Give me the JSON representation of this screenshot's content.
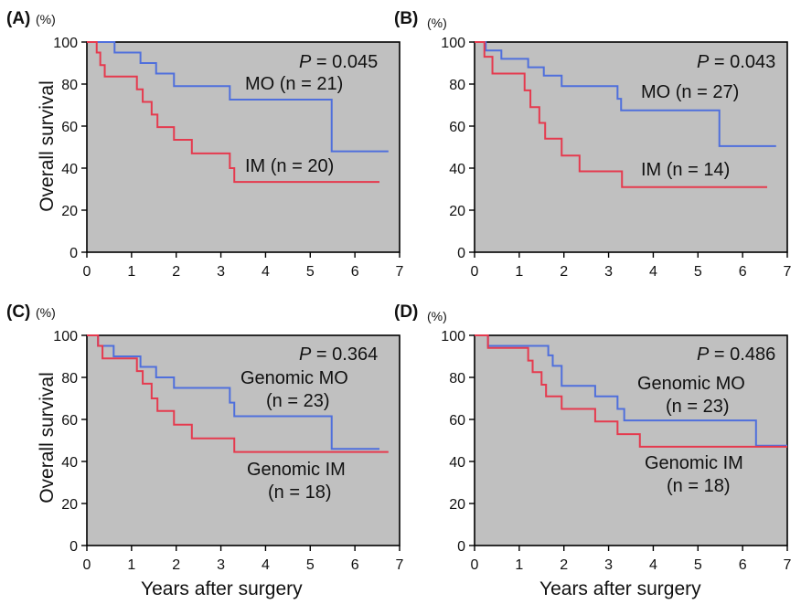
{
  "colors": {
    "background": "#c0c0c0",
    "mo": "#4f6fdc",
    "im": "#e53a4e",
    "axis": "#000000",
    "text": "#111111"
  },
  "shared": {
    "y_axis_title": "Overall survival",
    "x_axis_title": "Years after surgery",
    "y_unit": "(%)"
  },
  "chart_data": [
    {
      "panel": "(A)",
      "type": "line",
      "xlim": [
        0,
        7
      ],
      "ylim": [
        0,
        100
      ],
      "x_ticks": [
        0,
        1,
        2,
        3,
        4,
        5,
        6,
        7
      ],
      "y_ticks": [
        0,
        20,
        40,
        60,
        80,
        100
      ],
      "p_label": "P",
      "p_value": " = 0.045",
      "series": [
        {
          "name": "MO",
          "n_text": "MO (n = 21)",
          "label_lines": [
            "MO (n = 21)"
          ],
          "color": "#4f6fdc",
          "steps": [
            [
              0,
              100
            ],
            [
              0.62,
              95
            ],
            [
              1.2,
              90
            ],
            [
              1.55,
              85
            ],
            [
              1.95,
              79
            ],
            [
              3.2,
              72.6
            ],
            [
              5.48,
              48
            ],
            [
              6.75,
              48
            ]
          ]
        },
        {
          "name": "IM",
          "n_text": "IM (n = 20)",
          "label_lines": [
            "IM (n = 20)"
          ],
          "color": "#e53a4e",
          "steps": [
            [
              0,
              100
            ],
            [
              0.22,
              95
            ],
            [
              0.3,
              89
            ],
            [
              0.4,
              83.6
            ],
            [
              1.12,
              77.5
            ],
            [
              1.25,
              71.5
            ],
            [
              1.45,
              65.5
            ],
            [
              1.58,
              59.5
            ],
            [
              1.95,
              53.5
            ],
            [
              2.35,
              47
            ],
            [
              3.2,
              40
            ],
            [
              3.3,
              33.4
            ],
            [
              6.55,
              33.4
            ]
          ]
        }
      ]
    },
    {
      "panel": "(B)",
      "type": "line",
      "xlim": [
        0,
        7
      ],
      "ylim": [
        0,
        100
      ],
      "x_ticks": [
        0,
        1,
        2,
        3,
        4,
        5,
        6,
        7
      ],
      "y_ticks": [
        0,
        20,
        40,
        60,
        80,
        100
      ],
      "p_label": "P",
      "p_value": " = 0.043",
      "series": [
        {
          "name": "MO",
          "n_text": "MO (n = 27)",
          "label_lines": [
            "MO (n = 27)"
          ],
          "color": "#4f6fdc",
          "steps": [
            [
              0,
              100
            ],
            [
              0.25,
              96
            ],
            [
              0.6,
              92
            ],
            [
              1.2,
              88
            ],
            [
              1.55,
              84
            ],
            [
              1.95,
              79
            ],
            [
              3.2,
              73
            ],
            [
              3.28,
              67.5
            ],
            [
              5.48,
              50.5
            ],
            [
              6.75,
              50.5
            ]
          ]
        },
        {
          "name": "IM",
          "n_text": "IM (n = 14)",
          "label_lines": [
            "IM (n = 14)"
          ],
          "color": "#e53a4e",
          "steps": [
            [
              0,
              100
            ],
            [
              0.22,
              93
            ],
            [
              0.4,
              85
            ],
            [
              1.12,
              77
            ],
            [
              1.25,
              69
            ],
            [
              1.45,
              61.5
            ],
            [
              1.58,
              54
            ],
            [
              1.95,
              46
            ],
            [
              2.35,
              38.5
            ],
            [
              3.3,
              31
            ],
            [
              6.55,
              31
            ]
          ]
        }
      ]
    },
    {
      "panel": "(C)",
      "type": "line",
      "xlim": [
        0,
        7
      ],
      "ylim": [
        0,
        100
      ],
      "x_ticks": [
        0,
        1,
        2,
        3,
        4,
        5,
        6,
        7
      ],
      "y_ticks": [
        0,
        20,
        40,
        60,
        80,
        100
      ],
      "p_label": "P",
      "p_value": " = 0.364",
      "series": [
        {
          "name": "Genomic MO",
          "n_text": "(n = 23)",
          "label_lines": [
            "Genomic MO",
            "(n = 23)"
          ],
          "color": "#4f6fdc",
          "steps": [
            [
              0,
              100
            ],
            [
              0.25,
              95
            ],
            [
              0.6,
              90
            ],
            [
              1.2,
              85
            ],
            [
              1.55,
              80
            ],
            [
              1.95,
              75
            ],
            [
              3.2,
              68
            ],
            [
              3.3,
              61.5
            ],
            [
              5.48,
              46
            ],
            [
              6.55,
              46
            ]
          ]
        },
        {
          "name": "Genomic IM",
          "n_text": "(n = 18)",
          "label_lines": [
            "Genomic IM",
            "(n = 18)"
          ],
          "color": "#e53a4e",
          "steps": [
            [
              0,
              100
            ],
            [
              0.25,
              95
            ],
            [
              0.35,
              89
            ],
            [
              1.12,
              83
            ],
            [
              1.25,
              77
            ],
            [
              1.45,
              70
            ],
            [
              1.58,
              64
            ],
            [
              1.95,
              57.5
            ],
            [
              2.35,
              51
            ],
            [
              3.3,
              44.5
            ],
            [
              6.75,
              44.5
            ]
          ]
        }
      ]
    },
    {
      "panel": "(D)",
      "type": "line",
      "xlim": [
        0,
        7
      ],
      "ylim": [
        0,
        100
      ],
      "x_ticks": [
        0,
        1,
        2,
        3,
        4,
        5,
        6,
        7
      ],
      "y_ticks": [
        0,
        20,
        40,
        60,
        80,
        100
      ],
      "p_label": "P",
      "p_value": " = 0.486",
      "series": [
        {
          "name": "Genomic MO",
          "n_text": "(n = 23)",
          "label_lines": [
            "Genomic MO",
            "(n = 23)"
          ],
          "color": "#4f6fdc",
          "steps": [
            [
              0,
              100
            ],
            [
              0.3,
              95
            ],
            [
              1.65,
              90.5
            ],
            [
              1.75,
              85.5
            ],
            [
              1.95,
              76
            ],
            [
              2.7,
              71
            ],
            [
              3.2,
              65
            ],
            [
              3.35,
              59.5
            ],
            [
              6.3,
              47.5
            ],
            [
              7,
              47.5
            ]
          ]
        },
        {
          "name": "Genomic IM",
          "n_text": "(n = 18)",
          "label_lines": [
            "Genomic IM",
            "(n = 18)"
          ],
          "color": "#e53a4e",
          "steps": [
            [
              0,
              100
            ],
            [
              0.3,
              94
            ],
            [
              1.2,
              88
            ],
            [
              1.3,
              82.5
            ],
            [
              1.5,
              76.5
            ],
            [
              1.6,
              71
            ],
            [
              1.95,
              65
            ],
            [
              2.7,
              59
            ],
            [
              3.2,
              53
            ],
            [
              3.7,
              47
            ],
            [
              7,
              47
            ]
          ]
        }
      ]
    }
  ]
}
